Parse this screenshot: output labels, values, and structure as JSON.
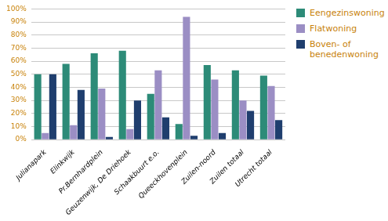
{
  "chart_data": {
    "type": "bar",
    "categories": [
      "Julianapark",
      "Elinkwijk",
      "Pr.Bernhardplein",
      "Geuzenwijk, De Driehoek",
      "Schaakbuurt e.o.",
      "Queeckhovenplein",
      "Zuilen-noord",
      "Zuilen totaal",
      "Utrecht totaal"
    ],
    "series": [
      {
        "name": "Eengezinswoning",
        "color": "#2D8B78",
        "values": [
          50,
          58,
          66,
          68,
          35,
          12,
          57,
          53,
          49
        ]
      },
      {
        "name": "Flatwoning",
        "color": "#9B8EC4",
        "values": [
          5,
          11,
          39,
          8,
          53,
          94,
          46,
          30,
          41
        ]
      },
      {
        "name": "Boven- of\nbenedenwoning",
        "color": "#1F3E6E",
        "values": [
          50,
          38,
          2,
          30,
          17,
          3,
          5,
          22,
          15
        ]
      }
    ],
    "ylim": [
      0,
      100
    ],
    "yticks": [
      {
        "value": 0,
        "label": "0%"
      },
      {
        "value": 10,
        "label": "10%"
      },
      {
        "value": 20,
        "label": "20%"
      },
      {
        "value": 30,
        "label": "30%"
      },
      {
        "value": 40,
        "label": "40%"
      },
      {
        "value": 50,
        "label": "50%"
      },
      {
        "value": 60,
        "label": "60%"
      },
      {
        "value": 70,
        "label": "70%"
      },
      {
        "value": 80,
        "label": "80%"
      },
      {
        "value": 90,
        "label": "90%"
      },
      {
        "value": 100,
        "label": "100%"
      }
    ],
    "grid": true,
    "legend": "right"
  }
}
